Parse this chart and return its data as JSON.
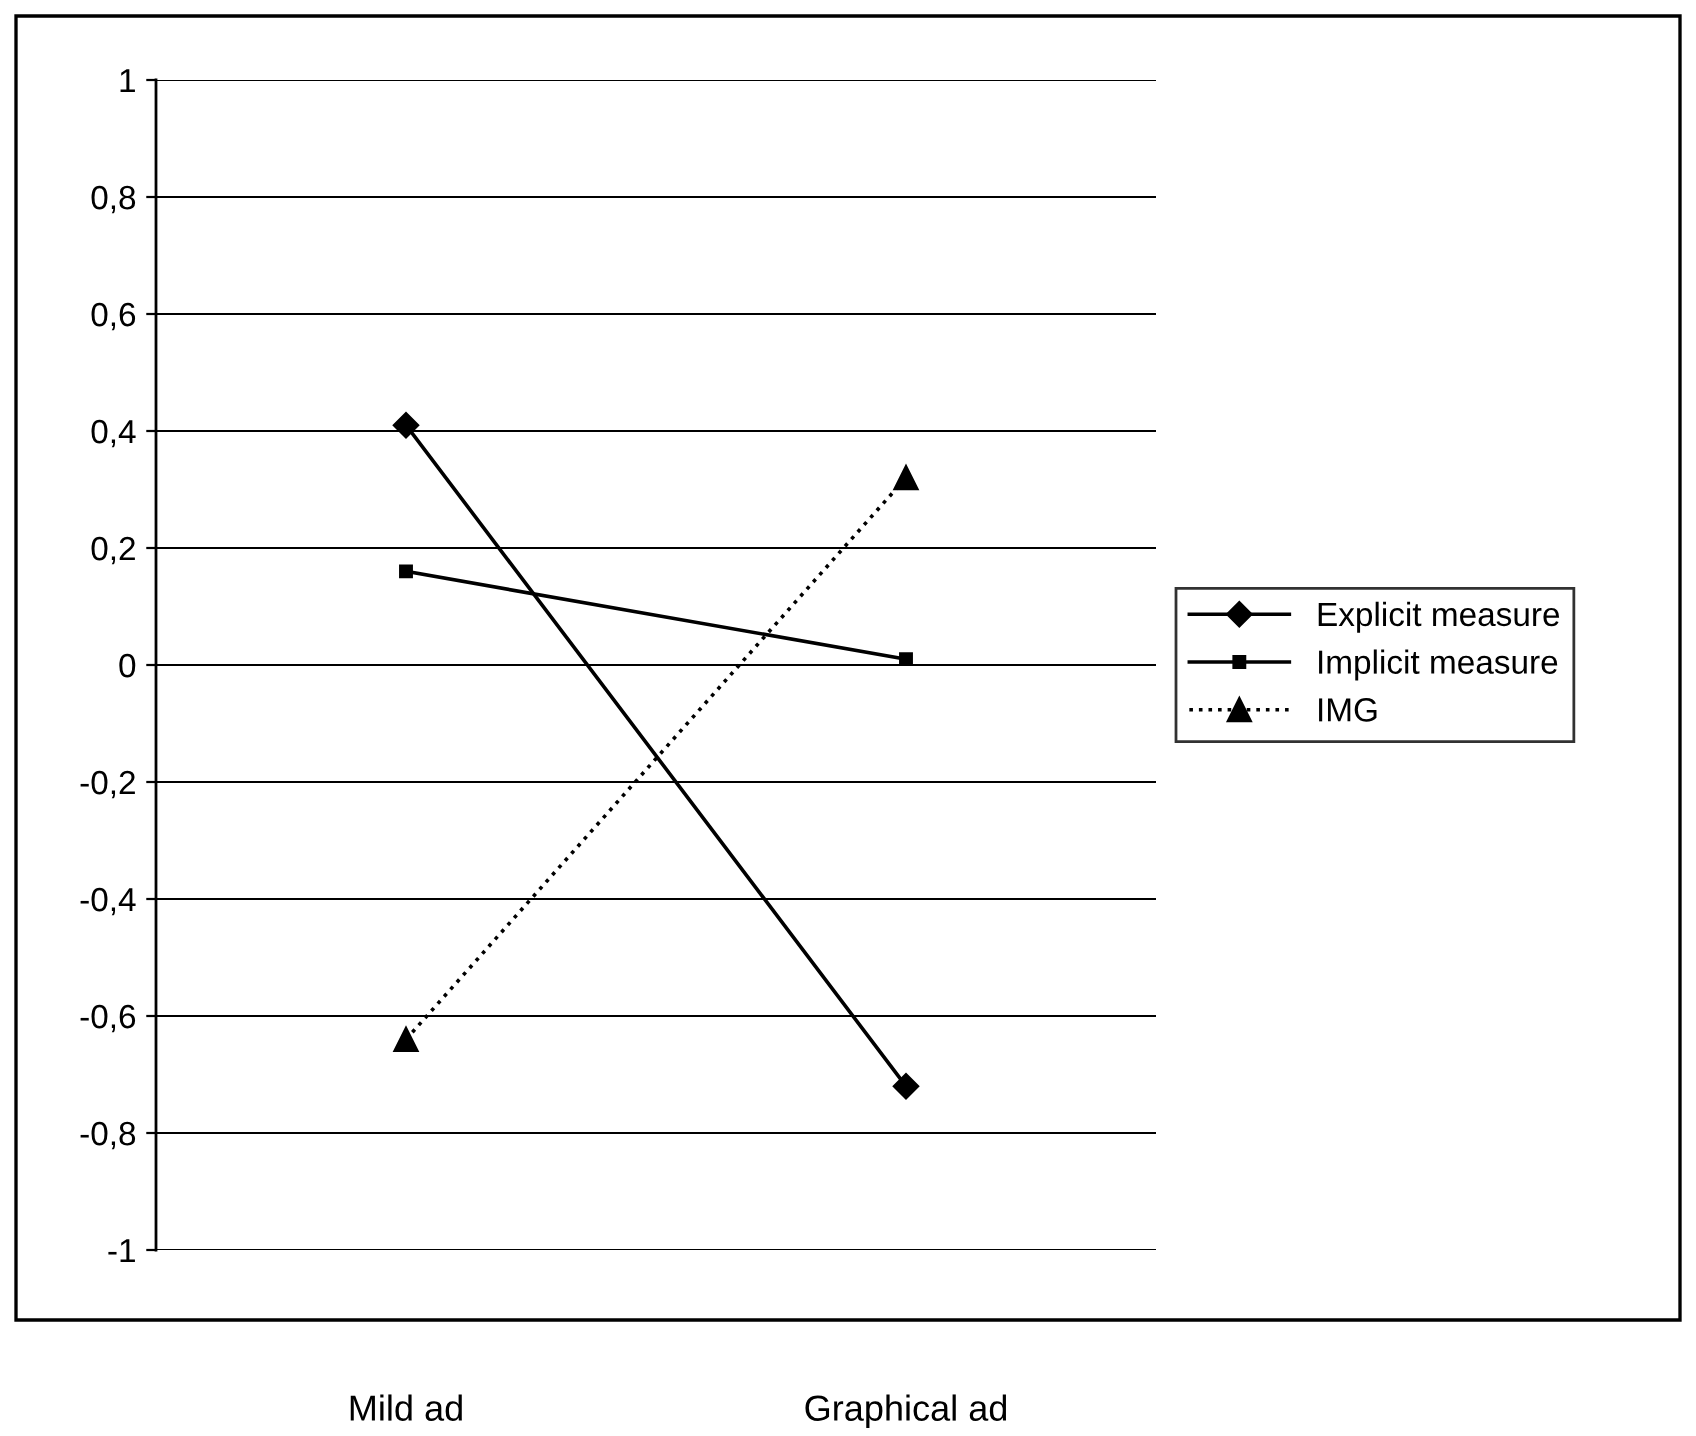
{
  "chart_data": {
    "type": "line",
    "categories": [
      "Mild ad",
      "Graphical ad"
    ],
    "series": [
      {
        "name": "Explicit measure",
        "color": "#000000",
        "values": [
          0.41,
          -0.72
        ],
        "marker": "diamond",
        "line_style": "solid"
      },
      {
        "name": "Implicit measure",
        "color": "#000000",
        "values": [
          0.16,
          0.01
        ],
        "marker": "square",
        "line_style": "solid"
      },
      {
        "name": "IMG",
        "color": "#000000",
        "values": [
          -0.64,
          0.32
        ],
        "marker": "triangle",
        "line_style": "dotted"
      }
    ],
    "ylim": [
      -1,
      1
    ],
    "yticks": [
      {
        "value": -1,
        "label": "-1"
      },
      {
        "value": -0.8,
        "label": "-0,8"
      },
      {
        "value": -0.6,
        "label": "-0,6"
      },
      {
        "value": -0.4,
        "label": "-0,4"
      },
      {
        "value": -0.2,
        "label": "-0,2"
      },
      {
        "value": 0,
        "label": "0"
      },
      {
        "value": 0.2,
        "label": "0,2"
      },
      {
        "value": 0.4,
        "label": "0,4"
      },
      {
        "value": 0.6,
        "label": "0,6"
      },
      {
        "value": 0.8,
        "label": "0,8"
      },
      {
        "value": 1,
        "label": "1"
      }
    ],
    "grid": "y",
    "legend": "right"
  }
}
